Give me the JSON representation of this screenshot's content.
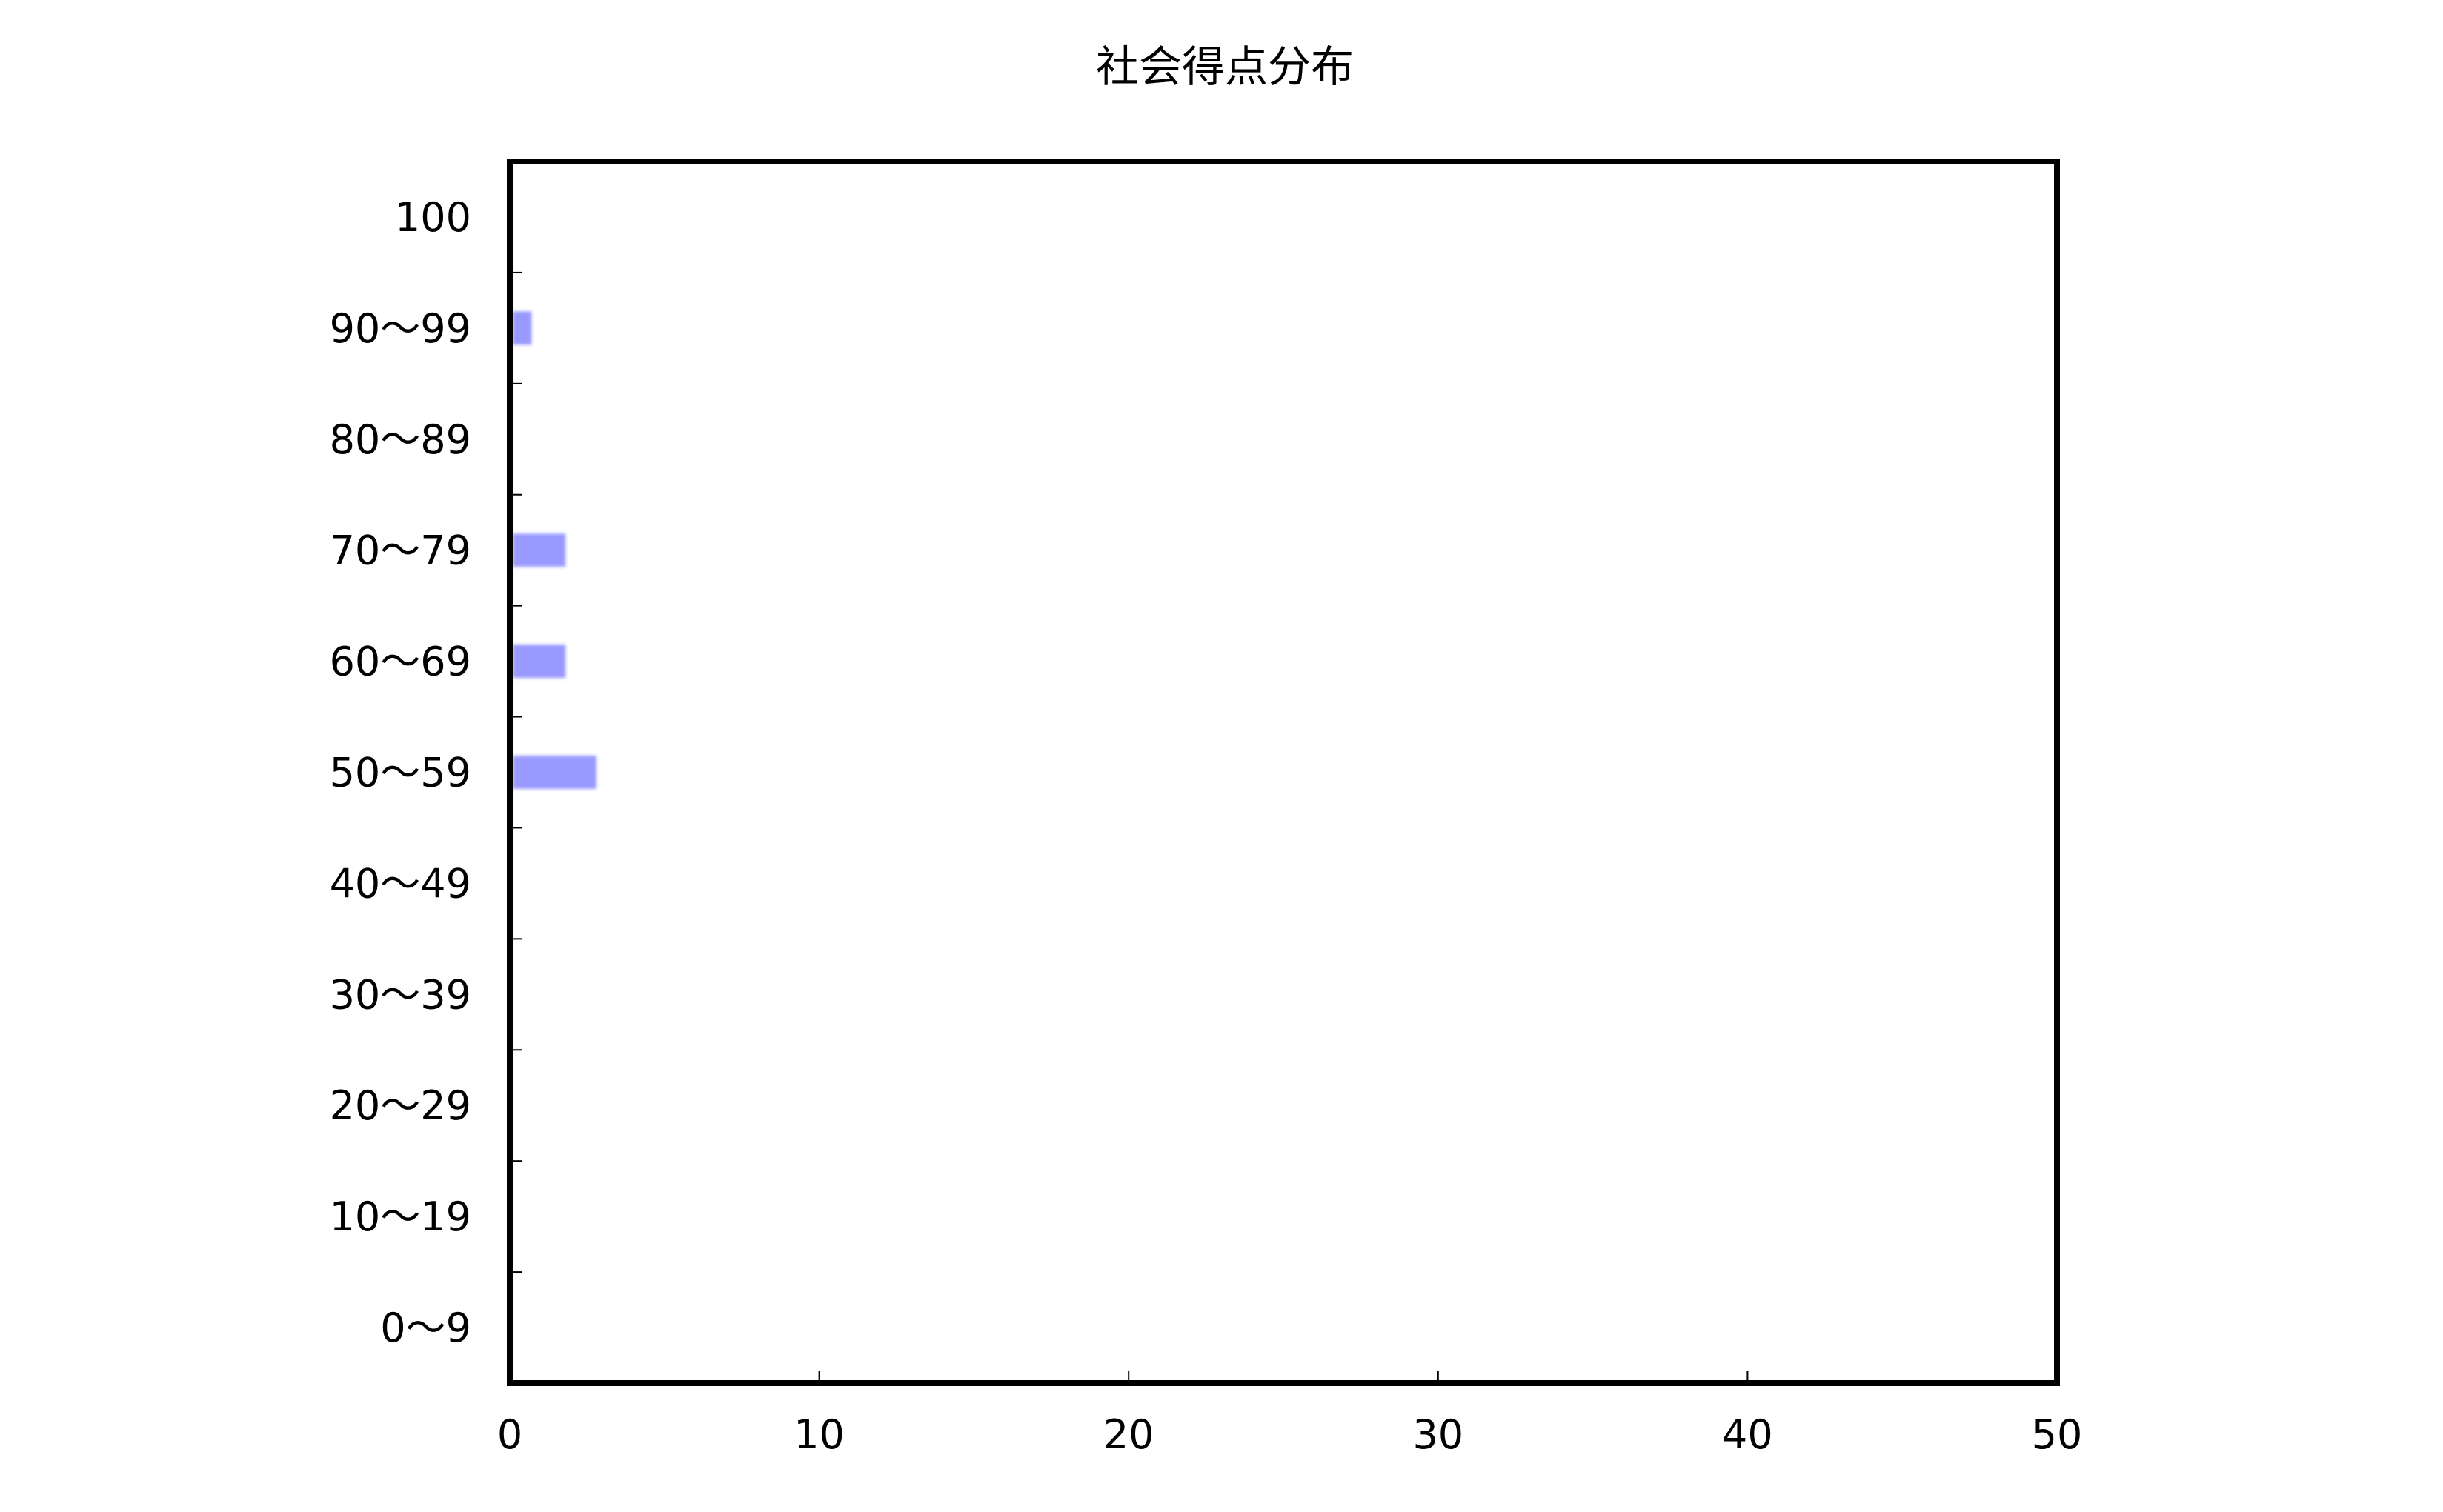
{
  "chart_data": {
    "type": "bar",
    "orientation": "horizontal",
    "title": "社会得点分布",
    "xlabel": "",
    "ylabel": "",
    "categories": [
      "100",
      "90～99",
      "80～89",
      "70～79",
      "60～69",
      "50～59",
      "40～49",
      "30～39",
      "20～29",
      "10～19",
      "0～9"
    ],
    "values": [
      0,
      0.7,
      0,
      1.8,
      1.8,
      2.8,
      0,
      0,
      0,
      0,
      0
    ],
    "xlim": [
      0,
      50
    ],
    "xticks": [
      "0",
      "10",
      "20",
      "30",
      "40",
      "50"
    ],
    "grid": false,
    "legend": "none",
    "colors": {
      "bar": "#9999ff",
      "frame": "#000000",
      "background": "#ffffff"
    }
  }
}
